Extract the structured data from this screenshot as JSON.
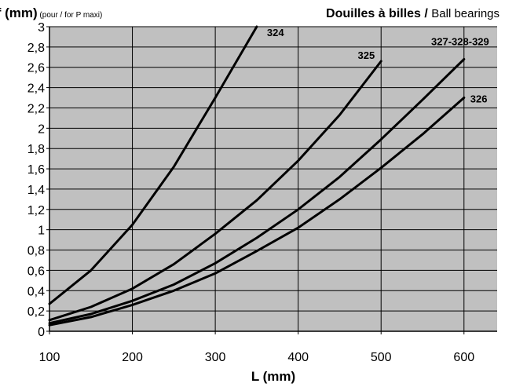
{
  "chart_data": {
    "type": "line",
    "title_main": "Douilles à billes / ",
    "title_sub": "Ball bearings",
    "ylabel_main": "f (mm)",
    "ylabel_sub": " (pour / for P maxi)",
    "xlabel": "L (mm)",
    "xlim": [
      100,
      640
    ],
    "ylim": [
      0,
      3
    ],
    "xticks": [
      100,
      200,
      300,
      400,
      500,
      600
    ],
    "yticks": [
      "0",
      "0,2",
      "0,4",
      "0,6",
      "0,8",
      "1",
      "1,2",
      "1,4",
      "1,6",
      "1,8",
      "2",
      "2,2",
      "2,4",
      "2,6",
      "2,8",
      "3"
    ],
    "ytick_values": [
      0,
      0.2,
      0.4,
      0.6,
      0.8,
      1,
      1.2,
      1.4,
      1.6,
      1.8,
      2,
      2.2,
      2.4,
      2.6,
      2.8,
      3
    ],
    "grid": true,
    "plot_background": "#c0c0c0",
    "line_color": "#000000",
    "series": [
      {
        "name": "324",
        "x": [
          100,
          150,
          200,
          250,
          300,
          350
        ],
        "values": [
          0.27,
          0.6,
          1.05,
          1.62,
          2.3,
          3.0
        ]
      },
      {
        "name": "325",
        "x": [
          100,
          150,
          200,
          250,
          300,
          350,
          400,
          450,
          500
        ],
        "values": [
          0.11,
          0.24,
          0.42,
          0.66,
          0.96,
          1.29,
          1.68,
          2.13,
          2.66
        ]
      },
      {
        "name": "327-328-329",
        "x": [
          100,
          150,
          200,
          250,
          300,
          350,
          400,
          450,
          500,
          550,
          600
        ],
        "values": [
          0.08,
          0.17,
          0.3,
          0.46,
          0.67,
          0.92,
          1.2,
          1.52,
          1.89,
          2.28,
          2.68
        ]
      },
      {
        "name": "326",
        "x": [
          100,
          150,
          200,
          250,
          300,
          350,
          400,
          450,
          500,
          550,
          600
        ],
        "values": [
          0.06,
          0.14,
          0.26,
          0.4,
          0.57,
          0.79,
          1.02,
          1.3,
          1.61,
          1.94,
          2.3
        ]
      }
    ]
  }
}
